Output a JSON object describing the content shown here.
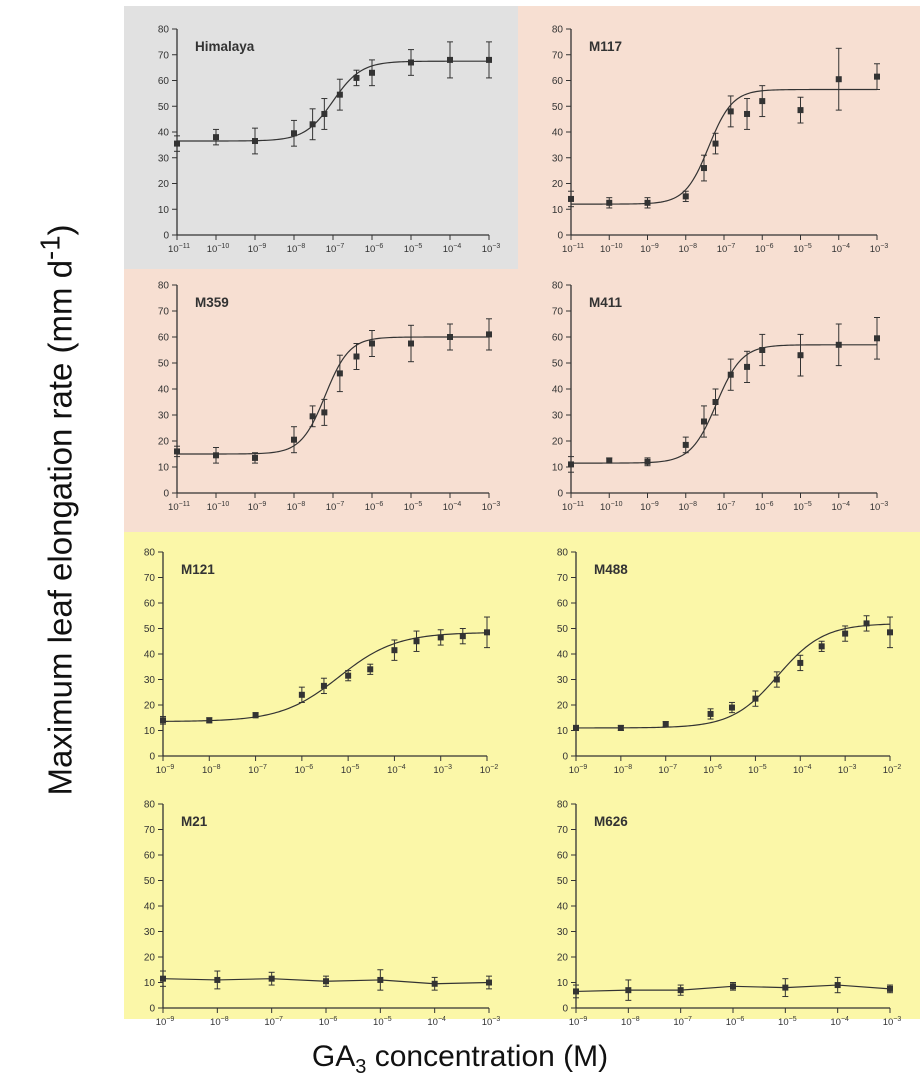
{
  "y_axis_label": {
    "main": "Maximum leaf elongation rate (mm d",
    "sup": "-1",
    "tail": ")"
  },
  "x_axis_label": {
    "pre": "GA",
    "sub": "3",
    "post": " concentration (M)"
  },
  "colors": {
    "gray_panel": "#e1e1e1",
    "pink_panel": "#f7dfd2",
    "yellow_panel": "#fbf7a8",
    "ink": "#333333"
  },
  "chart_data": [
    {
      "type": "scatter",
      "title": "Himalaya",
      "x_scale": "log",
      "xlim": [
        1e-11,
        0.001
      ],
      "ylim": [
        0,
        80
      ],
      "y_ticks": [
        "0",
        "10",
        "20",
        "30",
        "40",
        "50",
        "60",
        "70",
        "80"
      ],
      "x_tick_exponents": [
        "-11",
        "-10",
        "-9",
        "-8",
        "-7",
        "-6",
        "-5",
        "-4",
        "-3"
      ],
      "points": [
        {
          "x": 1e-11,
          "y": 35.5,
          "err": 3
        },
        {
          "x": 1e-10,
          "y": 38,
          "err": 3
        },
        {
          "x": 1e-09,
          "y": 36.5,
          "err": 5
        },
        {
          "x": 1e-08,
          "y": 39.5,
          "err": 5
        },
        {
          "x": 3e-08,
          "y": 43,
          "err": 6
        },
        {
          "x": 6e-08,
          "y": 47,
          "err": 6
        },
        {
          "x": 1.5e-07,
          "y": 54.5,
          "err": 6
        },
        {
          "x": 4e-07,
          "y": 61,
          "err": 3
        },
        {
          "x": 1e-06,
          "y": 63,
          "err": 5
        },
        {
          "x": 1e-05,
          "y": 67,
          "err": 5
        },
        {
          "x": 0.0001,
          "y": 68,
          "err": 7
        },
        {
          "x": 0.001,
          "y": 68,
          "err": 7
        }
      ],
      "fit": {
        "bottom": 36.5,
        "top": 67.5,
        "mid_log": -7.0,
        "slope": 1.2
      }
    },
    {
      "type": "scatter",
      "title": "M117",
      "x_scale": "log",
      "xlim": [
        1e-11,
        0.001
      ],
      "ylim": [
        0,
        80
      ],
      "y_ticks": [
        "0",
        "10",
        "20",
        "30",
        "40",
        "50",
        "60",
        "70",
        "80"
      ],
      "x_tick_exponents": [
        "-11",
        "-10",
        "-9",
        "-8",
        "-7",
        "-6",
        "-5",
        "-4",
        "-3"
      ],
      "points": [
        {
          "x": 1e-11,
          "y": 14,
          "err": 3
        },
        {
          "x": 1e-10,
          "y": 12.5,
          "err": 2
        },
        {
          "x": 1e-09,
          "y": 12.5,
          "err": 2
        },
        {
          "x": 1e-08,
          "y": 15,
          "err": 2
        },
        {
          "x": 3e-08,
          "y": 26,
          "err": 5
        },
        {
          "x": 6e-08,
          "y": 35.5,
          "err": 4
        },
        {
          "x": 1.5e-07,
          "y": 48,
          "err": 6
        },
        {
          "x": 4e-07,
          "y": 47,
          "err": 6
        },
        {
          "x": 1e-06,
          "y": 52,
          "err": 6
        },
        {
          "x": 1e-05,
          "y": 48.5,
          "err": 5
        },
        {
          "x": 0.0001,
          "y": 60.5,
          "err": 12
        },
        {
          "x": 0.001,
          "y": 61.5,
          "err": 5
        }
      ],
      "fit": {
        "bottom": 12,
        "top": 56.5,
        "mid_log": -7.4,
        "slope": 1.4
      }
    },
    {
      "type": "scatter",
      "title": "M359",
      "x_scale": "log",
      "xlim": [
        1e-11,
        0.001
      ],
      "ylim": [
        0,
        80
      ],
      "y_ticks": [
        "0",
        "10",
        "20",
        "30",
        "40",
        "50",
        "60",
        "70",
        "80"
      ],
      "x_tick_exponents": [
        "-11",
        "-10",
        "-9",
        "-8",
        "-7",
        "-6",
        "-5",
        "-4",
        "-3"
      ],
      "points": [
        {
          "x": 1e-11,
          "y": 16,
          "err": 2
        },
        {
          "x": 1e-10,
          "y": 14.5,
          "err": 3
        },
        {
          "x": 1e-09,
          "y": 13.5,
          "err": 2
        },
        {
          "x": 1e-08,
          "y": 20.5,
          "err": 5
        },
        {
          "x": 3e-08,
          "y": 29.5,
          "err": 4
        },
        {
          "x": 6e-08,
          "y": 31,
          "err": 5
        },
        {
          "x": 1.5e-07,
          "y": 46,
          "err": 7
        },
        {
          "x": 4e-07,
          "y": 52.5,
          "err": 5
        },
        {
          "x": 1e-06,
          "y": 57.5,
          "err": 5
        },
        {
          "x": 1e-05,
          "y": 57.5,
          "err": 7
        },
        {
          "x": 0.0001,
          "y": 60,
          "err": 5
        },
        {
          "x": 0.001,
          "y": 61,
          "err": 6
        }
      ],
      "fit": {
        "bottom": 15,
        "top": 60,
        "mid_log": -7.2,
        "slope": 1.4
      }
    },
    {
      "type": "scatter",
      "title": "M411",
      "x_scale": "log",
      "xlim": [
        1e-11,
        0.001
      ],
      "ylim": [
        0,
        80
      ],
      "y_ticks": [
        "0",
        "10",
        "20",
        "30",
        "40",
        "50",
        "60",
        "70",
        "80"
      ],
      "x_tick_exponents": [
        "-11",
        "-10",
        "-9",
        "-8",
        "-7",
        "-6",
        "-5",
        "-4",
        "-3"
      ],
      "points": [
        {
          "x": 1e-11,
          "y": 11,
          "err": 3
        },
        {
          "x": 1e-10,
          "y": 12.5,
          "err": 1
        },
        {
          "x": 1e-09,
          "y": 12,
          "err": 1.5
        },
        {
          "x": 1e-08,
          "y": 18.5,
          "err": 3
        },
        {
          "x": 3e-08,
          "y": 27.5,
          "err": 6
        },
        {
          "x": 6e-08,
          "y": 35,
          "err": 5
        },
        {
          "x": 1.5e-07,
          "y": 45.5,
          "err": 6
        },
        {
          "x": 4e-07,
          "y": 48.5,
          "err": 6
        },
        {
          "x": 1e-06,
          "y": 55,
          "err": 6
        },
        {
          "x": 1e-05,
          "y": 53,
          "err": 8
        },
        {
          "x": 0.0001,
          "y": 57,
          "err": 8
        },
        {
          "x": 0.001,
          "y": 59.5,
          "err": 8
        }
      ],
      "fit": {
        "bottom": 11.5,
        "top": 57,
        "mid_log": -7.2,
        "slope": 1.3
      }
    },
    {
      "type": "scatter",
      "title": "M121",
      "x_scale": "log",
      "xlim": [
        1e-09,
        0.01
      ],
      "ylim": [
        0,
        80
      ],
      "y_ticks": [
        "0",
        "10",
        "20",
        "30",
        "40",
        "50",
        "60",
        "70",
        "80"
      ],
      "x_tick_exponents": [
        "-9",
        "-8",
        "-7",
        "-6",
        "-5",
        "-4",
        "-3",
        "-2"
      ],
      "points": [
        {
          "x": 1e-09,
          "y": 14,
          "err": 1.5
        },
        {
          "x": 1e-08,
          "y": 14,
          "err": 1
        },
        {
          "x": 1e-07,
          "y": 16,
          "err": 1
        },
        {
          "x": 1e-06,
          "y": 24,
          "err": 3
        },
        {
          "x": 3e-06,
          "y": 27.5,
          "err": 3
        },
        {
          "x": 1e-05,
          "y": 31.5,
          "err": 2
        },
        {
          "x": 3e-05,
          "y": 34,
          "err": 2
        },
        {
          "x": 0.0001,
          "y": 41.5,
          "err": 4
        },
        {
          "x": 0.0003,
          "y": 45,
          "err": 4
        },
        {
          "x": 0.001,
          "y": 46.5,
          "err": 3
        },
        {
          "x": 0.003,
          "y": 47,
          "err": 3
        },
        {
          "x": 0.01,
          "y": 48.5,
          "err": 6
        }
      ],
      "fit": {
        "bottom": 13.5,
        "top": 48.5,
        "mid_log": -5.2,
        "slope": 0.7
      }
    },
    {
      "type": "scatter",
      "title": "M488",
      "x_scale": "log",
      "xlim": [
        1e-09,
        0.01
      ],
      "ylim": [
        0,
        80
      ],
      "y_ticks": [
        "0",
        "10",
        "20",
        "30",
        "40",
        "50",
        "60",
        "70",
        "80"
      ],
      "x_tick_exponents": [
        "-9",
        "-8",
        "-7",
        "-6",
        "-5",
        "-4",
        "-3",
        "-2"
      ],
      "points": [
        {
          "x": 1e-09,
          "y": 11,
          "err": 1
        },
        {
          "x": 1e-08,
          "y": 11,
          "err": 1
        },
        {
          "x": 1e-07,
          "y": 12.5,
          "err": 1
        },
        {
          "x": 1e-06,
          "y": 16.5,
          "err": 2
        },
        {
          "x": 3e-06,
          "y": 19,
          "err": 2
        },
        {
          "x": 1e-05,
          "y": 22.5,
          "err": 3
        },
        {
          "x": 3e-05,
          "y": 30,
          "err": 3
        },
        {
          "x": 0.0001,
          "y": 36.5,
          "err": 3
        },
        {
          "x": 0.0003,
          "y": 43,
          "err": 2
        },
        {
          "x": 0.001,
          "y": 48,
          "err": 3
        },
        {
          "x": 0.003,
          "y": 52,
          "err": 3
        },
        {
          "x": 0.01,
          "y": 48.5,
          "err": 6
        }
      ],
      "fit": {
        "bottom": 11,
        "top": 52,
        "mid_log": -4.5,
        "slope": 0.85
      }
    },
    {
      "type": "scatter",
      "title": "M21",
      "x_scale": "log",
      "xlim": [
        1e-09,
        0.001
      ],
      "ylim": [
        0,
        80
      ],
      "y_ticks": [
        "0",
        "10",
        "20",
        "30",
        "40",
        "50",
        "60",
        "70",
        "80"
      ],
      "x_tick_exponents": [
        "-9",
        "-8",
        "-7",
        "-6",
        "-5",
        "-4",
        "-3"
      ],
      "points": [
        {
          "x": 1e-09,
          "y": 11.5,
          "err": 3
        },
        {
          "x": 1e-08,
          "y": 11,
          "err": 3.5
        },
        {
          "x": 1e-07,
          "y": 11.5,
          "err": 2.5
        },
        {
          "x": 1e-06,
          "y": 10.5,
          "err": 2
        },
        {
          "x": 1e-05,
          "y": 11,
          "err": 4
        },
        {
          "x": 0.0001,
          "y": 9.5,
          "err": 2.5
        },
        {
          "x": 0.001,
          "y": 10,
          "err": 2.5
        }
      ],
      "connect": true
    },
    {
      "type": "scatter",
      "title": "M626",
      "x_scale": "log",
      "xlim": [
        1e-09,
        0.001
      ],
      "ylim": [
        0,
        80
      ],
      "y_ticks": [
        "0",
        "10",
        "20",
        "30",
        "40",
        "50",
        "60",
        "70",
        "80"
      ],
      "x_tick_exponents": [
        "-9",
        "-8",
        "-7",
        "-6",
        "-5",
        "-4",
        "-3"
      ],
      "points": [
        {
          "x": 1e-09,
          "y": 6.5,
          "err": 2.5
        },
        {
          "x": 1e-08,
          "y": 7,
          "err": 4
        },
        {
          "x": 1e-07,
          "y": 7,
          "err": 2
        },
        {
          "x": 1e-06,
          "y": 8.5,
          "err": 1.5
        },
        {
          "x": 1e-05,
          "y": 8,
          "err": 3.5
        },
        {
          "x": 0.0001,
          "y": 9,
          "err": 3
        },
        {
          "x": 0.001,
          "y": 7.5,
          "err": 1.5
        }
      ],
      "connect": true
    }
  ]
}
